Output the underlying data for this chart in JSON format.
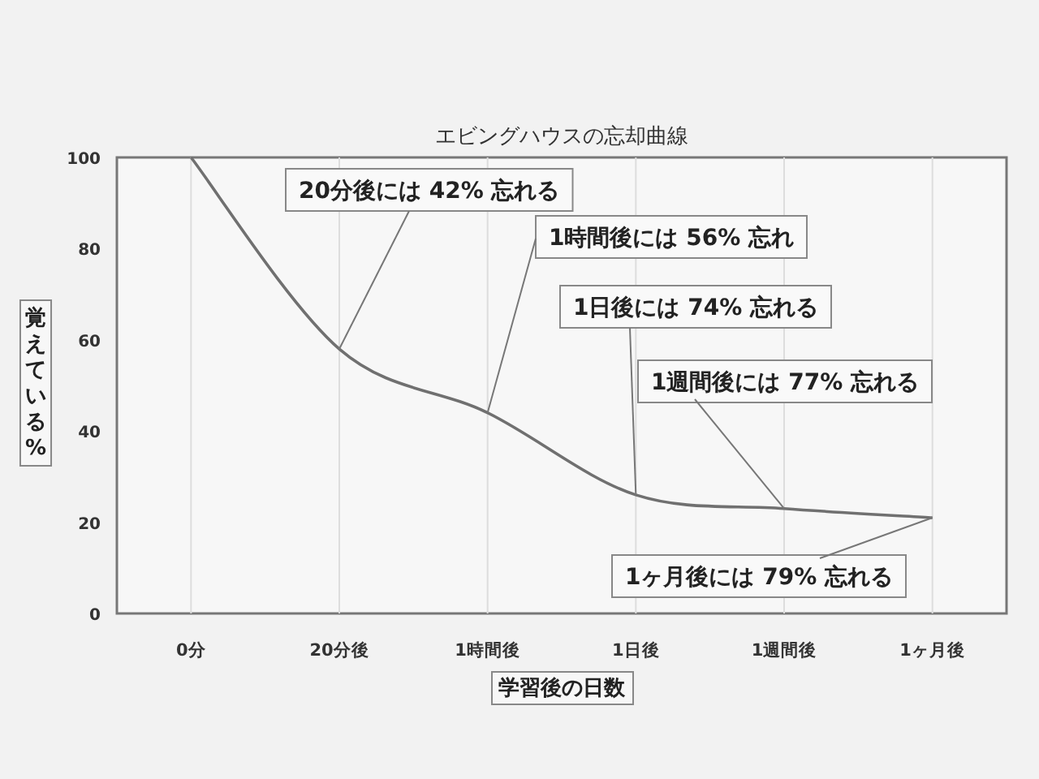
{
  "chart_data": {
    "type": "line",
    "title": "エビングハウスの忘却曲線",
    "xlabel": "学習後の日数",
    "ylabel": "覚えている%",
    "categories": [
      "0分",
      "20分後",
      "1時間後",
      "1日後",
      "1週間後",
      "1ヶ月後"
    ],
    "values": [
      100,
      58,
      44,
      26,
      23,
      21
    ],
    "color": "#707070",
    "ylim": [
      0,
      100
    ],
    "yticks": [
      0,
      20,
      40,
      60,
      80,
      100
    ],
    "grid": "x",
    "annotations": [
      {
        "text": "20分後には 42% 忘れる",
        "x": "20分後",
        "y": 58
      },
      {
        "text": "1時間後には 56% 忘れ",
        "x": "1時間後",
        "y": 44
      },
      {
        "text": "1日後には 74% 忘れる",
        "x": "1日後",
        "y": 26
      },
      {
        "text": "1週間後には 77% 忘れる",
        "x": "1週間後",
        "y": 23
      },
      {
        "text": "1ヶ月後には 79% 忘れる",
        "x": "1ヶ月後",
        "y": 21
      }
    ]
  }
}
